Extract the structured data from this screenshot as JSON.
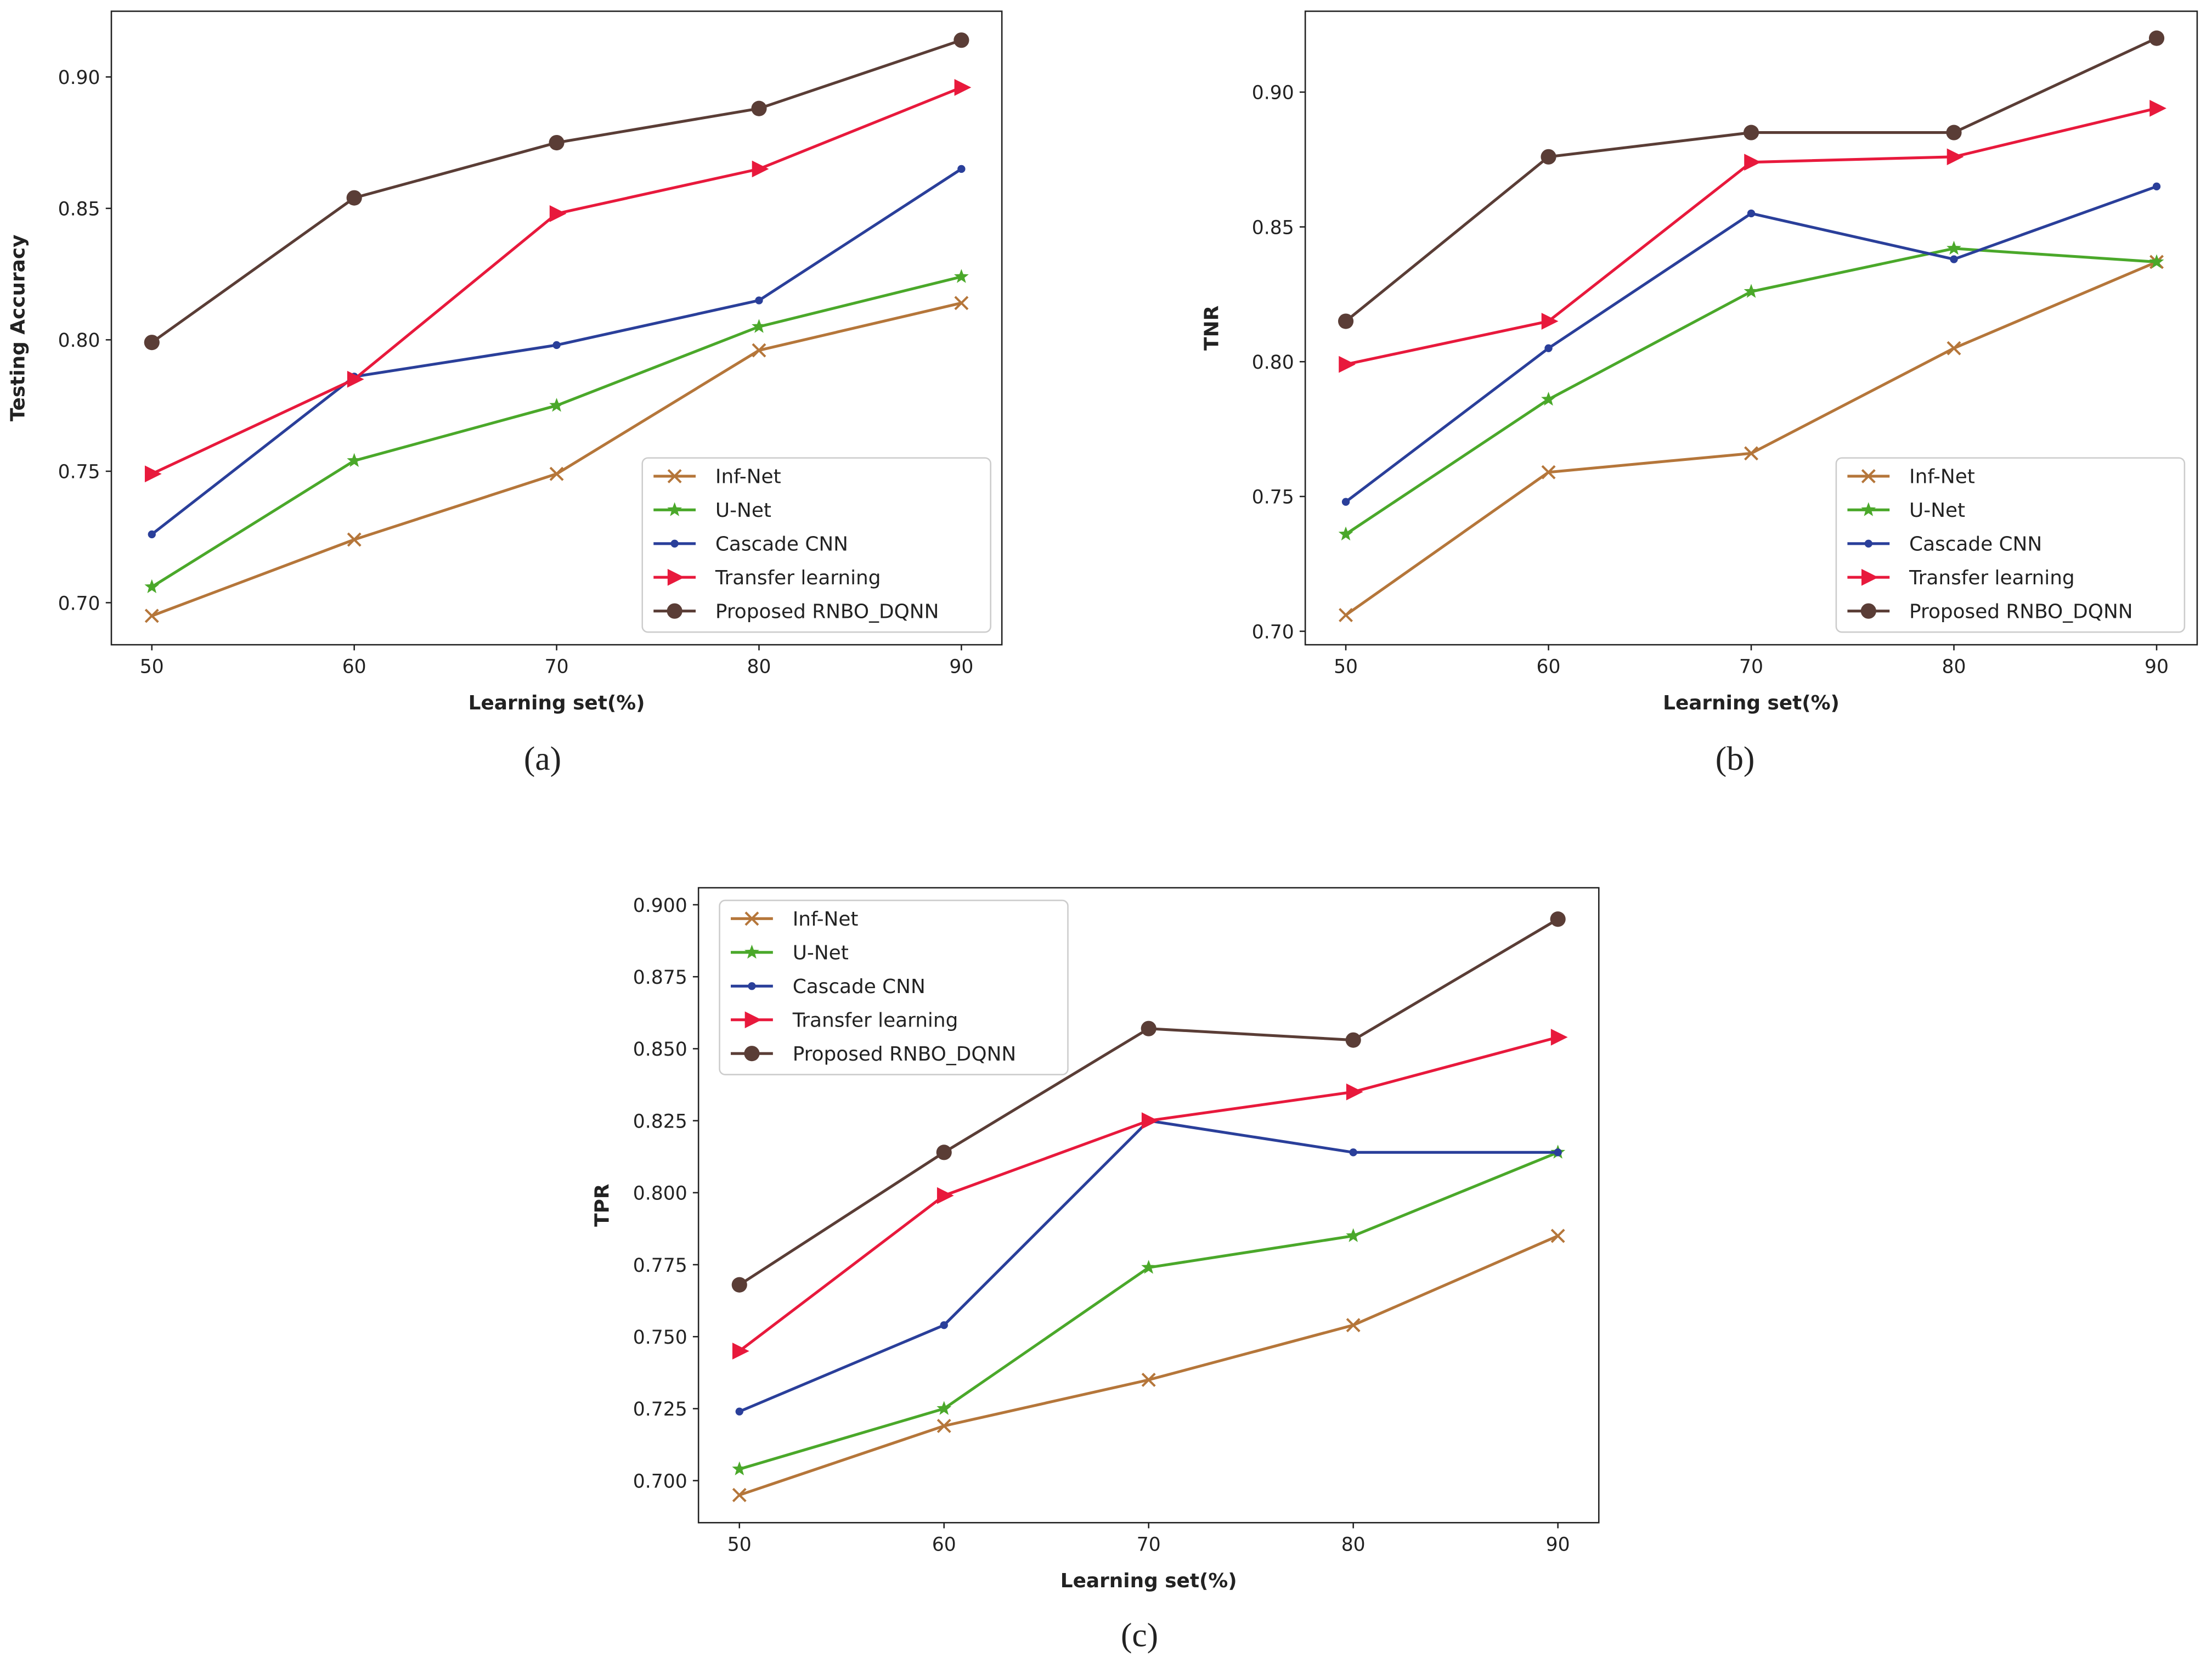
{
  "series_styles": [
    {
      "name": "Inf-Net",
      "color": "#b5763a",
      "marker": "x"
    },
    {
      "name": "U-Net",
      "color": "#4aa82a",
      "marker": "star"
    },
    {
      "name": "Cascade CNN",
      "color": "#2a3f9a",
      "marker": "dot"
    },
    {
      "name": "Transfer learning",
      "color": "#e8193c",
      "marker": "triangle-right"
    },
    {
      "name": "Proposed RNBO_DQNN",
      "color": "#5a3d36",
      "marker": "circle"
    }
  ],
  "chart_data": [
    {
      "type": "line",
      "panel_label": "(a)",
      "title": "",
      "xlabel": "Learning set(%)",
      "ylabel": "Testing Accuracy",
      "x": [
        50,
        60,
        70,
        80,
        90
      ],
      "xticks": [
        "50",
        "60",
        "70",
        "80",
        "90"
      ],
      "xlim": [
        48,
        92
      ],
      "ylim": [
        0.684,
        0.925
      ],
      "yticks": [
        "0.70",
        "0.75",
        "0.80",
        "0.85",
        "0.90"
      ],
      "ytick_values": [
        0.7,
        0.75,
        0.8,
        0.85,
        0.9
      ],
      "legend": "bottom-right",
      "grid": false,
      "series": [
        {
          "name": "Inf-Net",
          "values": [
            0.695,
            0.724,
            0.749,
            0.796,
            0.814
          ]
        },
        {
          "name": "U-Net",
          "values": [
            0.706,
            0.754,
            0.775,
            0.805,
            0.824
          ]
        },
        {
          "name": "Cascade CNN",
          "values": [
            0.726,
            0.786,
            0.798,
            0.815,
            0.865
          ]
        },
        {
          "name": "Transfer learning",
          "values": [
            0.749,
            0.785,
            0.848,
            0.865,
            0.896
          ]
        },
        {
          "name": "Proposed RNBO_DQNN",
          "values": [
            0.799,
            0.854,
            0.875,
            0.888,
            0.914
          ]
        }
      ]
    },
    {
      "type": "line",
      "panel_label": "(b)",
      "title": "",
      "xlabel": "Learning set(%)",
      "ylabel": "TNR",
      "x": [
        50,
        60,
        70,
        80,
        90
      ],
      "xticks": [
        "50",
        "60",
        "70",
        "80",
        "90"
      ],
      "xlim": [
        48,
        92
      ],
      "ylim": [
        0.695,
        0.93
      ],
      "yticks": [
        "0.70",
        "0.75",
        "0.80",
        "0.85",
        "0.90"
      ],
      "ytick_values": [
        0.7,
        0.75,
        0.8,
        0.85,
        0.9
      ],
      "legend": "bottom-right",
      "grid": false,
      "series": [
        {
          "name": "Inf-Net",
          "values": [
            0.706,
            0.759,
            0.766,
            0.805,
            0.837
          ]
        },
        {
          "name": "U-Net",
          "values": [
            0.736,
            0.786,
            0.826,
            0.842,
            0.837
          ]
        },
        {
          "name": "Cascade CNN",
          "values": [
            0.748,
            0.805,
            0.855,
            0.838,
            0.865
          ]
        },
        {
          "name": "Transfer learning",
          "values": [
            0.799,
            0.815,
            0.874,
            0.876,
            0.894
          ]
        },
        {
          "name": "Proposed RNBO_DQNN",
          "values": [
            0.815,
            0.876,
            0.885,
            0.885,
            0.92
          ]
        }
      ]
    },
    {
      "type": "line",
      "panel_label": "(c)",
      "title": "",
      "xlabel": "Learning set(%)",
      "ylabel": "TPR",
      "x": [
        50,
        60,
        70,
        80,
        90
      ],
      "xticks": [
        "50",
        "60",
        "70",
        "80",
        "90"
      ],
      "xlim": [
        48,
        92
      ],
      "ylim": [
        0.6854,
        0.9059
      ],
      "yticks": [
        "0.700",
        "0.725",
        "0.750",
        "0.775",
        "0.800",
        "0.825",
        "0.850",
        "0.875",
        "0.900"
      ],
      "ytick_values": [
        0.7,
        0.725,
        0.75,
        0.775,
        0.8,
        0.825,
        0.85,
        0.875,
        0.9
      ],
      "legend": "top-left",
      "grid": false,
      "series": [
        {
          "name": "Inf-Net",
          "values": [
            0.695,
            0.719,
            0.735,
            0.754,
            0.785
          ]
        },
        {
          "name": "U-Net",
          "values": [
            0.704,
            0.725,
            0.774,
            0.785,
            0.814
          ]
        },
        {
          "name": "Cascade CNN",
          "values": [
            0.724,
            0.754,
            0.825,
            0.814,
            0.814
          ]
        },
        {
          "name": "Transfer learning",
          "values": [
            0.745,
            0.799,
            0.825,
            0.835,
            0.854
          ]
        },
        {
          "name": "Proposed RNBO_DQNN",
          "values": [
            0.768,
            0.814,
            0.857,
            0.853,
            0.895
          ]
        }
      ]
    }
  ]
}
